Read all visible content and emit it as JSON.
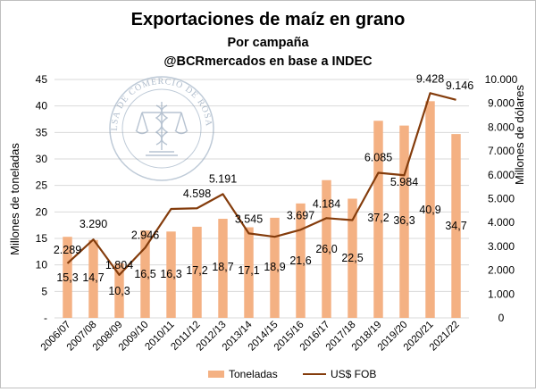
{
  "chart_data": {
    "type": "bar+line",
    "title": "Exportaciones de maíz en grano",
    "subtitle_1": "Por campaña",
    "subtitle_2": "@BCRmercados en base a INDEC",
    "categories": [
      "2006/07",
      "2007/08",
      "2008/09",
      "2009/10",
      "2010/11",
      "2011/12",
      "2012/13",
      "2013/14",
      "2014/15",
      "2015/16",
      "2016/17",
      "2017/18",
      "2018/19",
      "2019/20",
      "2020/21",
      "2021/22"
    ],
    "series": [
      {
        "name": "Toneladas",
        "type": "bar",
        "axis": "left",
        "values": [
          15.3,
          14.7,
          10.3,
          16.5,
          16.3,
          17.2,
          18.7,
          17.1,
          18.9,
          21.6,
          26.0,
          22.5,
          37.2,
          36.3,
          40.9,
          34.7
        ],
        "labels": [
          "15,3",
          "14,7",
          "10,3",
          "16,5",
          "16,3",
          "17,2",
          "18,7",
          "17,1",
          "18,9",
          "21,6",
          "26,0",
          "22,5",
          "37,2",
          "36,3",
          "40,9",
          "34,7"
        ],
        "color": "#f4b183"
      },
      {
        "name": "US$ FOB",
        "type": "line",
        "axis": "right",
        "values": [
          2289,
          3290,
          1804,
          2946,
          4570,
          4598,
          5191,
          3545,
          3400,
          3697,
          4184,
          4100,
          6085,
          5984,
          9428,
          9146
        ],
        "labels": [
          "2.289",
          "3.290",
          "1.804",
          "2.946",
          "",
          "4.598",
          "5.191",
          "3.545",
          "",
          "3.697",
          "4.184",
          "",
          "6.085",
          "5.984",
          "9.428",
          "9.146"
        ],
        "color": "#843c0c"
      }
    ],
    "ylabel_left": "Millones de toneladas",
    "ylabel_right": "Millones de dólares",
    "ylim_left": [
      0,
      45
    ],
    "ylim_right": [
      0,
      10000
    ],
    "yticks_left": [
      "-",
      "5",
      "10",
      "15",
      "20",
      "25",
      "30",
      "35",
      "40",
      "45"
    ],
    "yticks_right": [
      "0",
      "1.000",
      "2.000",
      "3.000",
      "4.000",
      "5.000",
      "6.000",
      "7.000",
      "8.000",
      "9.000",
      "10.000"
    ],
    "grid": true,
    "legend_position": "bottom",
    "watermark_text": "BOLSA DE COMERCIO DE ROSARIO"
  }
}
